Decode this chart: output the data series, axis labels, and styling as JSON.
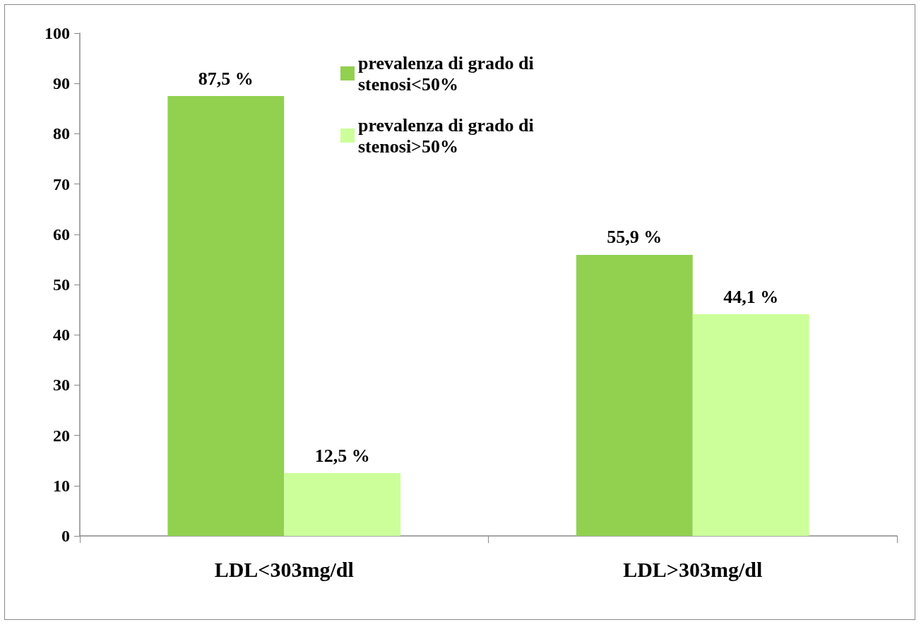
{
  "chart_data": {
    "type": "bar",
    "categories": [
      "LDL<303mg/dl",
      "LDL>303mg/dl"
    ],
    "series": [
      {
        "name": "prevalenza di grado di stenosi<50%",
        "color": "#92d050",
        "values": [
          87.5,
          55.9
        ],
        "value_labels": [
          "87,5 %",
          "55,9 %"
        ]
      },
      {
        "name": "prevalenza di grado di stenosi>50%",
        "color": "#ccff99",
        "values": [
          12.5,
          44.1
        ],
        "value_labels": [
          "12,5 %",
          "44,1 %"
        ]
      }
    ],
    "ylim": [
      0,
      100
    ],
    "yticks": [
      0,
      10,
      20,
      30,
      40,
      50,
      60,
      70,
      80,
      90,
      100
    ],
    "grid": false,
    "legend": "top"
  }
}
